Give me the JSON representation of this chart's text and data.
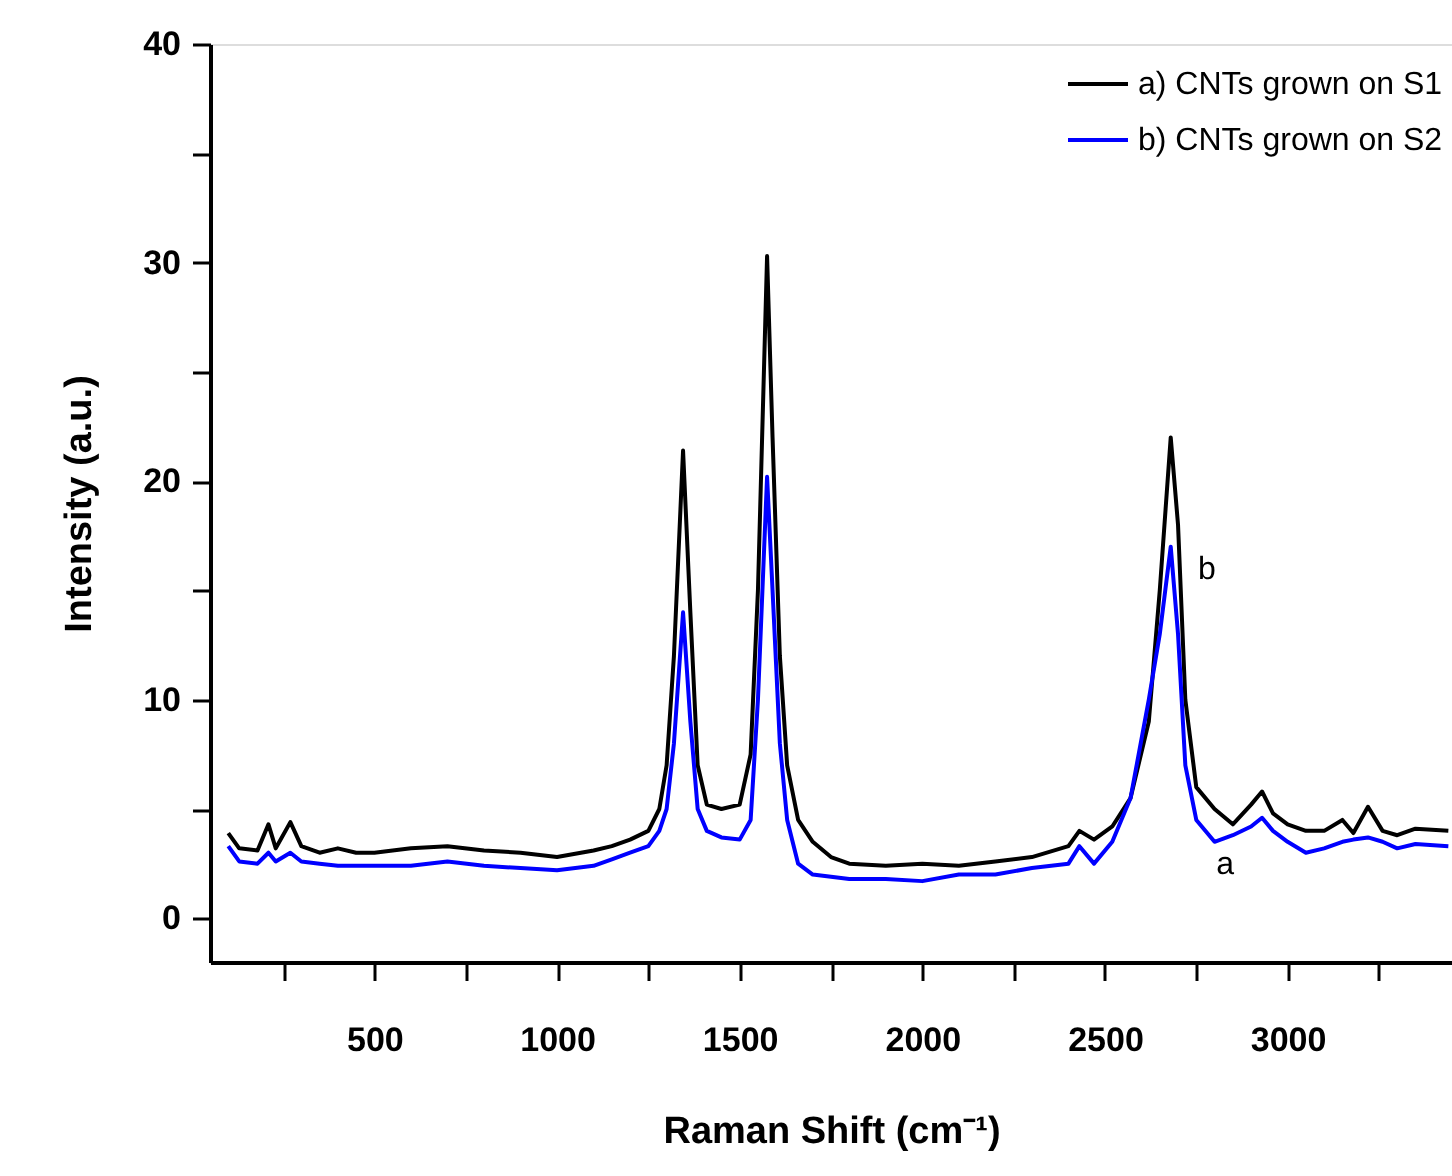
{
  "chart_data": {
    "type": "line",
    "xlabel": "Raman Shift (cm⁻¹)",
    "ylabel": "Intensity (a.u.)",
    "xlim": [
      50,
      3450
    ],
    "ylim": [
      -2,
      40
    ],
    "xticks": [
      {
        "value": 250,
        "label": null
      },
      500,
      {
        "value": 750,
        "label": null
      },
      1000,
      {
        "value": 1250,
        "label": null
      },
      1500,
      {
        "value": 1750,
        "label": null
      },
      2000,
      {
        "value": 2250,
        "label": null
      },
      2500,
      {
        "value": 2750,
        "label": null
      },
      3000,
      {
        "value": 3250,
        "label": null
      }
    ],
    "yticks": [
      0,
      {
        "value": 5,
        "label": null
      },
      10,
      {
        "value": 15,
        "label": null
      },
      20,
      {
        "value": 25,
        "label": null
      },
      30,
      {
        "value": 35,
        "label": null
      },
      40
    ],
    "grid": false,
    "legend": "top right",
    "line_style": "solid",
    "marker": "none",
    "x": [
      100,
      130,
      180,
      210,
      230,
      270,
      300,
      350,
      400,
      450,
      500,
      600,
      700,
      800,
      900,
      1000,
      1100,
      1150,
      1200,
      1250,
      1280,
      1300,
      1320,
      1345,
      1365,
      1385,
      1410,
      1450,
      1500,
      1530,
      1550,
      1575,
      1590,
      1610,
      1630,
      1660,
      1700,
      1750,
      1800,
      1900,
      2000,
      2100,
      2200,
      2300,
      2400,
      2430,
      2470,
      2520,
      2570,
      2620,
      2650,
      2680,
      2700,
      2720,
      2750,
      2800,
      2850,
      2900,
      2930,
      2960,
      3000,
      3050,
      3100,
      3150,
      3180,
      3220,
      3260,
      3300,
      3350,
      3440
    ],
    "series": [
      {
        "name": "a) CNTs grown on S1",
        "color": "#000000",
        "values": [
          3.9,
          3.2,
          3.1,
          4.3,
          3.2,
          4.4,
          3.3,
          3.0,
          3.2,
          3.0,
          3.0,
          3.2,
          3.3,
          3.1,
          3.0,
          2.8,
          3.1,
          3.3,
          3.6,
          4.0,
          5,
          7,
          12,
          21.4,
          14,
          7,
          5.2,
          5.0,
          5.2,
          7.5,
          15,
          30.3,
          22,
          12,
          7,
          4.5,
          3.5,
          2.8,
          2.5,
          2.4,
          2.5,
          2.4,
          2.6,
          2.8,
          3.3,
          4.0,
          3.6,
          4.2,
          5.5,
          9,
          15,
          22,
          18,
          10,
          6,
          5.0,
          4.3,
          5.2,
          5.8,
          4.8,
          4.3,
          4.0,
          4.0,
          4.5,
          3.9,
          5.1,
          4.0,
          3.8,
          4.1,
          4.0
        ]
      },
      {
        "name": "b) CNTs grown on S2",
        "color": "#0000ff",
        "values": [
          3.3,
          2.6,
          2.5,
          3.0,
          2.6,
          3.0,
          2.6,
          2.5,
          2.4,
          2.4,
          2.4,
          2.4,
          2.6,
          2.4,
          2.3,
          2.2,
          2.4,
          2.7,
          3.0,
          3.3,
          4,
          5,
          8,
          14,
          9,
          5,
          4.0,
          3.7,
          3.6,
          4.5,
          10,
          20.2,
          15,
          8,
          4.5,
          2.5,
          2.0,
          1.9,
          1.8,
          1.8,
          1.7,
          2.0,
          2.0,
          2.3,
          2.5,
          3.3,
          2.5,
          3.5,
          5.5,
          10,
          13,
          17,
          13,
          7,
          4.5,
          3.5,
          3.8,
          4.2,
          4.6,
          4.0,
          3.5,
          3.0,
          3.2,
          3.5,
          3.6,
          3.7,
          3.5,
          3.2,
          3.4,
          3.3
        ]
      }
    ],
    "annotations": [
      {
        "text": "b",
        "x": 2700,
        "y": 18
      },
      {
        "text": "a",
        "x": 2750,
        "y": 4.5
      }
    ]
  }
}
